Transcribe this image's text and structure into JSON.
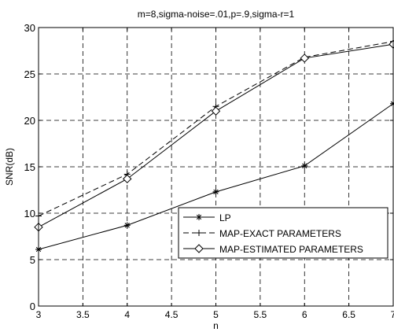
{
  "chart_data": {
    "type": "line",
    "title": "m=8,sigma-noise=.01,p=.9,sigma-r=1",
    "xlabel": "n",
    "ylabel": "SNR(dB)",
    "xlim": [
      3,
      7
    ],
    "ylim": [
      0,
      30
    ],
    "x_ticks": [
      "3",
      "3.5",
      "4",
      "4.5",
      "5",
      "5.5",
      "6",
      "6.5",
      "7"
    ],
    "y_ticks": [
      "0",
      "5",
      "10",
      "15",
      "20",
      "25",
      "30"
    ],
    "grid": true,
    "legend_position": "lower-right",
    "x": [
      3,
      4,
      5,
      6,
      7
    ],
    "series": [
      {
        "name": "LP",
        "values": [
          6.1,
          8.7,
          12.3,
          15.1,
          21.8
        ],
        "line_style": "solid",
        "marker": "star",
        "color": "#000000"
      },
      {
        "name": "MAP-EXACT PARAMETERS",
        "values": [
          9.7,
          14.2,
          21.5,
          26.8,
          28.5
        ],
        "line_style": "dashed",
        "marker": "plus",
        "color": "#000000"
      },
      {
        "name": "MAP-ESTIMATED PARAMETERS",
        "values": [
          8.5,
          13.7,
          21.0,
          26.7,
          28.2
        ],
        "line_style": "solid",
        "marker": "diamond",
        "color": "#000000"
      }
    ]
  }
}
